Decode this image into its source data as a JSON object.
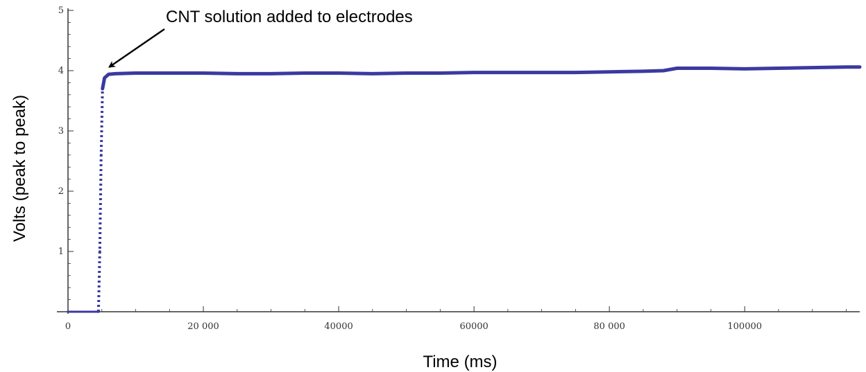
{
  "chart_data": {
    "type": "line",
    "title": "",
    "xlabel": "Time (ms)",
    "ylabel": "Volts (peak to peak)",
    "xlim": [
      0,
      117000
    ],
    "ylim": [
      0,
      5
    ],
    "x_ticks": [
      0,
      20000,
      40000,
      60000,
      80000,
      100000
    ],
    "x_tick_labels": [
      "0",
      "20 000",
      "40000",
      "60000",
      "80 000",
      "100000"
    ],
    "y_ticks": [
      1,
      2,
      3,
      4,
      5
    ],
    "y_tick_labels": [
      "1",
      "2",
      "3",
      "4",
      "5"
    ],
    "grid": false,
    "legend": "none",
    "series": [
      {
        "color": "#3b3aa0",
        "x": [
          0,
          4500,
          4700,
          4900,
          5100,
          5400,
          6000,
          7000,
          10000,
          15000,
          20000,
          25000,
          30000,
          35000,
          40000,
          45000,
          50000,
          55000,
          60000,
          65000,
          70000,
          75000,
          80000,
          85000,
          88000,
          90000,
          95000,
          100000,
          105000,
          110000,
          115000,
          117000
        ],
        "y": [
          0,
          0,
          1.0,
          2.6,
          3.7,
          3.88,
          3.94,
          3.95,
          3.96,
          3.96,
          3.96,
          3.95,
          3.95,
          3.96,
          3.96,
          3.95,
          3.96,
          3.96,
          3.97,
          3.97,
          3.97,
          3.97,
          3.98,
          3.99,
          4.0,
          4.04,
          4.04,
          4.03,
          4.04,
          4.05,
          4.06,
          4.06
        ]
      }
    ],
    "annotations": [
      {
        "text": "CNT solution added to electrodes",
        "x": 5500,
        "y": 3.97
      }
    ]
  }
}
